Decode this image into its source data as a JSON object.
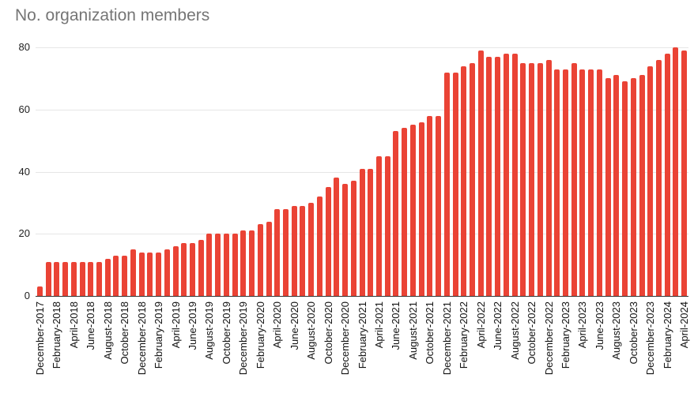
{
  "style": {
    "bar_color": "#EA4335",
    "title_color": "#757575",
    "grid_color": "#E6E6E6",
    "axis_color": "#333333",
    "tick_label_color": "#111111",
    "background": "#FFFFFF"
  },
  "chart_data": {
    "type": "bar",
    "title": "No. organization members",
    "xlabel": "",
    "ylabel": "",
    "ylim": [
      0,
      80
    ],
    "yticks": [
      0,
      20,
      40,
      60,
      80
    ],
    "grid": true,
    "legend": false,
    "x_tick_every": 2,
    "bar_color": "#EA4335",
    "categories": [
      "December-2017",
      "January-2018",
      "February-2018",
      "March-2018",
      "April-2018",
      "May-2018",
      "June-2018",
      "July-2018",
      "August-2018",
      "September-2018",
      "October-2018",
      "November-2018",
      "December-2018",
      "January-2019",
      "February-2019",
      "March-2019",
      "April-2019",
      "May-2019",
      "June-2019",
      "July-2019",
      "August-2019",
      "September-2019",
      "October-2019",
      "November-2019",
      "December-2019",
      "January-2020",
      "February-2020",
      "March-2020",
      "April-2020",
      "May-2020",
      "June-2020",
      "July-2020",
      "August-2020",
      "September-2020",
      "October-2020",
      "November-2020",
      "December-2020",
      "January-2021",
      "February-2021",
      "March-2021",
      "April-2021",
      "May-2021",
      "June-2021",
      "July-2021",
      "August-2021",
      "September-2021",
      "October-2021",
      "November-2021",
      "December-2021",
      "January-2022",
      "February-2022",
      "March-2022",
      "April-2022",
      "May-2022",
      "June-2022",
      "July-2022",
      "August-2022",
      "September-2022",
      "October-2022",
      "November-2022",
      "December-2022",
      "January-2023",
      "February-2023",
      "March-2023",
      "April-2023",
      "May-2023",
      "June-2023",
      "July-2023",
      "August-2023",
      "September-2023",
      "October-2023",
      "November-2023",
      "December-2023",
      "January-2024",
      "February-2024",
      "March-2024",
      "April-2024"
    ],
    "values": [
      3,
      11,
      11,
      11,
      11,
      11,
      11,
      11,
      12,
      13,
      13,
      15,
      14,
      14,
      14,
      15,
      16,
      17,
      17,
      18,
      20,
      20,
      20,
      20,
      21,
      21,
      23,
      24,
      28,
      28,
      29,
      29,
      30,
      32,
      35,
      38,
      36,
      37,
      41,
      41,
      45,
      45,
      53,
      54,
      55,
      56,
      58,
      58,
      72,
      72,
      74,
      75,
      79,
      77,
      77,
      78,
      78,
      75,
      75,
      75,
      76,
      73,
      73,
      75,
      73,
      73,
      73,
      70,
      71,
      69,
      70,
      71,
      74,
      76,
      78,
      80,
      79
    ]
  }
}
